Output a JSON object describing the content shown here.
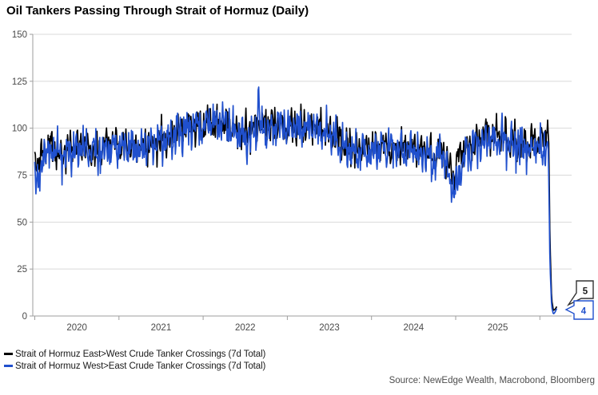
{
  "source": "Source: NewEdge Wealth, Macrobond, Bloomberg",
  "colors": {
    "east_west_line": "#000000",
    "west_east_line": "#2050cd",
    "grid": "#d9d9d9",
    "axis": "#9e9e9e",
    "tick_label": "#4a4a4a",
    "callout_east_west_border": "#333333",
    "callout_west_east_border": "#2050cd"
  },
  "chart_data": {
    "type": "line",
    "title": "Oil Tankers Passing Through Strait of Hormuz (Daily)",
    "xlabel": "",
    "ylabel": "",
    "ylim": [
      0,
      150
    ],
    "yticks": [
      0,
      25,
      50,
      75,
      100,
      125,
      150
    ],
    "x_domain_years": [
      2019.97,
      2026.38
    ],
    "x_year_ticks": [
      2020,
      2021,
      2022,
      2023,
      2024,
      2025,
      2026
    ],
    "x_year_labels": [
      "2020",
      "2021",
      "2022",
      "2023",
      "2024",
      "2025"
    ],
    "grid": "horizontal",
    "legend_position": "bottom-left",
    "series": [
      {
        "name": "Strait of Hormuz East>West Crude Tanker Crossings (7d Total)",
        "color": "#000000",
        "end_value": 5,
        "noise_amplitude": 8,
        "noise_seed": 3,
        "anchors": [
          [
            2020.0,
            86
          ],
          [
            2020.04,
            78
          ],
          [
            2020.1,
            90
          ],
          [
            2020.17,
            91
          ],
          [
            2020.25,
            88
          ],
          [
            2020.33,
            86
          ],
          [
            2020.42,
            88
          ],
          [
            2020.5,
            90
          ],
          [
            2020.58,
            91
          ],
          [
            2020.67,
            88
          ],
          [
            2020.75,
            88
          ],
          [
            2020.83,
            90
          ],
          [
            2020.92,
            91
          ],
          [
            2021.0,
            90
          ],
          [
            2021.17,
            90
          ],
          [
            2021.33,
            91
          ],
          [
            2021.5,
            93
          ],
          [
            2021.58,
            96
          ],
          [
            2021.67,
            99
          ],
          [
            2021.75,
            101
          ],
          [
            2021.83,
            102
          ],
          [
            2021.92,
            101
          ],
          [
            2022.0,
            101
          ],
          [
            2022.17,
            103
          ],
          [
            2022.33,
            101
          ],
          [
            2022.42,
            98
          ],
          [
            2022.5,
            96
          ],
          [
            2022.58,
            100
          ],
          [
            2022.67,
            102
          ],
          [
            2022.83,
            102
          ],
          [
            2022.92,
            101
          ],
          [
            2023.0,
            100
          ],
          [
            2023.17,
            102
          ],
          [
            2023.33,
            102
          ],
          [
            2023.5,
            97
          ],
          [
            2023.67,
            92
          ],
          [
            2023.83,
            89
          ],
          [
            2024.0,
            90
          ],
          [
            2024.17,
            91
          ],
          [
            2024.25,
            88
          ],
          [
            2024.42,
            91
          ],
          [
            2024.58,
            89
          ],
          [
            2024.75,
            85
          ],
          [
            2024.83,
            89
          ],
          [
            2024.92,
            81
          ],
          [
            2024.98,
            75
          ],
          [
            2025.04,
            85
          ],
          [
            2025.17,
            90
          ],
          [
            2025.33,
            95
          ],
          [
            2025.5,
            97
          ],
          [
            2025.67,
            93
          ],
          [
            2025.83,
            91
          ],
          [
            2025.92,
            93
          ],
          [
            2026.0,
            92
          ],
          [
            2026.05,
            94
          ],
          [
            2026.09,
            103
          ],
          [
            2026.105,
            92
          ],
          [
            2026.12,
            40
          ],
          [
            2026.14,
            9
          ],
          [
            2026.16,
            3
          ],
          [
            2026.18,
            3.5
          ],
          [
            2026.2,
            5
          ]
        ]
      },
      {
        "name": "Strait of Hormuz West>East Crude Tanker Crossings (7d Total)",
        "color": "#2050cd",
        "end_value": 4,
        "noise_amplitude": 9,
        "noise_seed": 11,
        "anchors": [
          [
            2020.0,
            80
          ],
          [
            2020.04,
            64
          ],
          [
            2020.1,
            86
          ],
          [
            2020.17,
            88
          ],
          [
            2020.25,
            86
          ],
          [
            2020.33,
            85
          ],
          [
            2020.42,
            87
          ],
          [
            2020.5,
            89
          ],
          [
            2020.58,
            90
          ],
          [
            2020.67,
            87
          ],
          [
            2020.75,
            86
          ],
          [
            2020.83,
            88
          ],
          [
            2020.92,
            90
          ],
          [
            2021.0,
            89
          ],
          [
            2021.17,
            89
          ],
          [
            2021.33,
            90
          ],
          [
            2021.5,
            92
          ],
          [
            2021.67,
            96
          ],
          [
            2021.83,
            100
          ],
          [
            2021.92,
            100
          ],
          [
            2022.0,
            100
          ],
          [
            2022.17,
            103
          ],
          [
            2022.25,
            103
          ],
          [
            2022.42,
            97
          ],
          [
            2022.5,
            94
          ],
          [
            2022.6,
            97
          ],
          [
            2022.64,
            99
          ],
          [
            2022.66,
            121
          ],
          [
            2022.68,
            99
          ],
          [
            2022.83,
            101
          ],
          [
            2022.92,
            100
          ],
          [
            2023.0,
            100
          ],
          [
            2023.17,
            101
          ],
          [
            2023.33,
            101
          ],
          [
            2023.5,
            96
          ],
          [
            2023.67,
            90
          ],
          [
            2023.83,
            87
          ],
          [
            2024.0,
            88
          ],
          [
            2024.17,
            90
          ],
          [
            2024.33,
            89
          ],
          [
            2024.5,
            88
          ],
          [
            2024.67,
            85
          ],
          [
            2024.75,
            81
          ],
          [
            2024.83,
            87
          ],
          [
            2024.92,
            75
          ],
          [
            2024.99,
            64
          ],
          [
            2025.06,
            81
          ],
          [
            2025.17,
            88
          ],
          [
            2025.33,
            93
          ],
          [
            2025.5,
            95
          ],
          [
            2025.67,
            91
          ],
          [
            2025.83,
            89
          ],
          [
            2025.92,
            90
          ],
          [
            2026.0,
            90
          ],
          [
            2026.04,
            86
          ],
          [
            2026.07,
            92
          ],
          [
            2026.1,
            88
          ],
          [
            2026.12,
            28
          ],
          [
            2026.14,
            5
          ],
          [
            2026.16,
            1
          ],
          [
            2026.18,
            2
          ],
          [
            2026.2,
            4
          ]
        ]
      }
    ],
    "callouts": [
      {
        "label": "5",
        "series": "East>West",
        "border_color": "#333333",
        "text_color": "#1a1a1a"
      },
      {
        "label": "4",
        "series": "West>East",
        "border_color": "#2050cd",
        "text_color": "#2050cd"
      }
    ]
  }
}
